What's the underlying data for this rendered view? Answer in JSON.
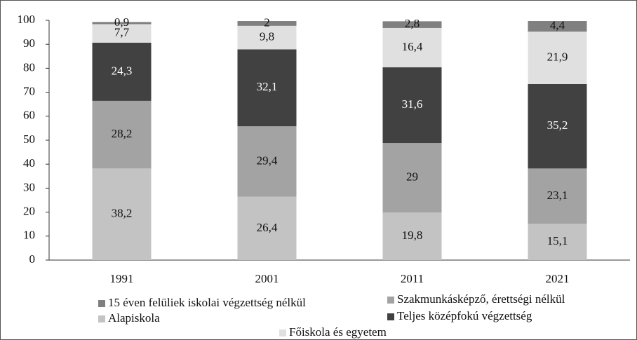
{
  "chart_data": {
    "type": "bar",
    "stacked": true,
    "categories": [
      "1991",
      "2001",
      "2011",
      "2021"
    ],
    "ylim": [
      0,
      100
    ],
    "yticks": [
      0,
      10,
      20,
      30,
      40,
      50,
      60,
      70,
      80,
      90,
      100
    ],
    "series": [
      {
        "name": "15 éven felüliek iskolai végzettség nélkül",
        "color": "#808080",
        "values": [
          0.9,
          2,
          2.8,
          4.4
        ],
        "value_labels": [
          "0,9",
          "2",
          "2,8",
          "4,4"
        ]
      },
      {
        "name": "Szakmunkásképző, érettségi nélkül",
        "color": "#a3a3a3",
        "values": [
          28.2,
          29.4,
          29,
          23.1
        ],
        "value_labels": [
          "28,2",
          "29,4",
          "29",
          "23,1"
        ]
      },
      {
        "name": "Alapiskola",
        "color": "#c3c3c3",
        "values": [
          38.2,
          26.4,
          19.8,
          15.1
        ],
        "value_labels": [
          "38,2",
          "26,4",
          "19,8",
          "15,1"
        ]
      },
      {
        "name": "Teljes középfokú végzettség",
        "color": "#414141",
        "values": [
          24.3,
          32.1,
          31.6,
          35.2
        ],
        "value_labels": [
          "24,3",
          "32,1",
          "31,6",
          "35,2"
        ]
      },
      {
        "name": "Főiskola és egyetem",
        "color": "#e0e0e0",
        "values": [
          7.7,
          9.8,
          16.4,
          21.9
        ],
        "value_labels": [
          "7,7",
          "9,8",
          "16,4",
          "21,9"
        ]
      }
    ]
  }
}
